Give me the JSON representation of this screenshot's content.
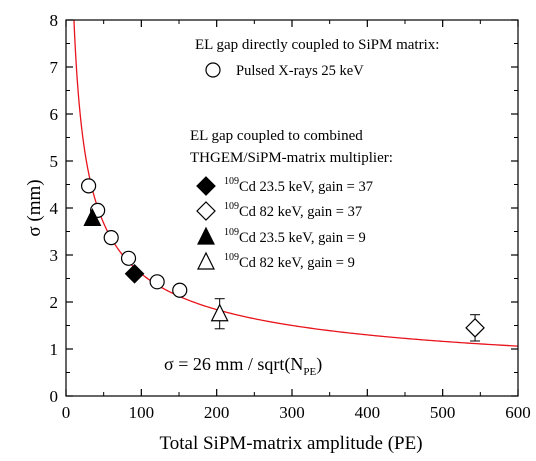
{
  "chart_data": {
    "type": "scatter",
    "xlabel": "Total SiPM-matrix amplitude (PE)",
    "ylabel": "σ (mm)",
    "xlim": [
      0,
      600
    ],
    "ylim": [
      0,
      8
    ],
    "xticks": [
      0,
      100,
      200,
      300,
      400,
      500,
      600
    ],
    "yticks": [
      0,
      1,
      2,
      3,
      4,
      5,
      6,
      7,
      8
    ],
    "grid": false,
    "legend_position": "top-right",
    "legend": {
      "group1_title": "EL gap directly coupled to SiPM matrix:",
      "group2_title_line1": "EL gap coupled to combined",
      "group2_title_line2": "THGEM/SiPM-matrix multiplier:"
    },
    "series": [
      {
        "key": "xray",
        "marker": "circle-open",
        "legend_sup": "",
        "legend_label": "Pulsed X-rays 25 keV",
        "points": [
          {
            "x": 30,
            "y": 4.47
          },
          {
            "x": 42,
            "y": 3.95
          },
          {
            "x": 60,
            "y": 3.37
          },
          {
            "x": 83,
            "y": 2.93
          },
          {
            "x": 121,
            "y": 2.43
          },
          {
            "x": 151,
            "y": 2.25
          }
        ]
      },
      {
        "key": "cd235_g37",
        "marker": "diamond-filled",
        "legend_sup": "109",
        "legend_label": "Cd 23.5 keV,  gain = 37",
        "points": [
          {
            "x": 91,
            "y": 2.6
          }
        ]
      },
      {
        "key": "cd82_g37",
        "marker": "diamond-open",
        "legend_sup": "109",
        "legend_label": "Cd 82 keV,  gain = 37",
        "points": [
          {
            "x": 543,
            "y": 1.45,
            "yerr": 0.28
          }
        ]
      },
      {
        "key": "cd235_g9",
        "marker": "triangle-filled",
        "legend_sup": "109",
        "legend_label": "Cd 23.5 keV, gain =  9",
        "points": [
          {
            "x": 35,
            "y": 3.78
          }
        ]
      },
      {
        "key": "cd82_g9",
        "marker": "triangle-open",
        "legend_sup": "109",
        "legend_label": "Cd 82 keV,  gain =  9",
        "points": [
          {
            "x": 204,
            "y": 1.75,
            "yerr": 0.32
          }
        ]
      }
    ],
    "fit": {
      "a": 26,
      "color": "#e8141c",
      "label_main": "σ = 26 mm / sqrt(N",
      "label_sub": "PE",
      "label_end": ")"
    },
    "colors": {
      "axis": "#000000",
      "fit": "#e8141c"
    }
  }
}
